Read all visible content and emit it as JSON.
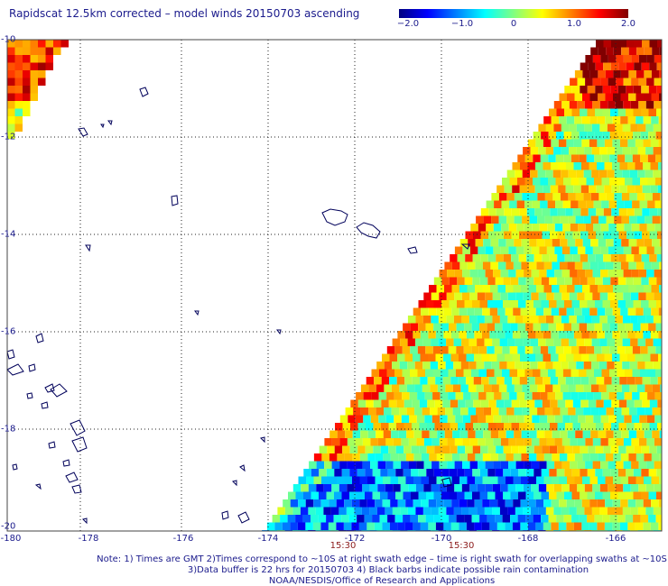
{
  "title": "Rapidscat 12.5km corrected – model winds 20150703 ascending",
  "colorbar": {
    "ticks": [
      "−2.0",
      "−1.0",
      "0",
      "1.0",
      "2.0"
    ],
    "colors": [
      "#000080",
      "#0000ff",
      "#0080ff",
      "#00ffff",
      "#80ff80",
      "#ffff00",
      "#ff8000",
      "#ff0000",
      "#800000"
    ]
  },
  "lat_labels": [
    "-10",
    "-12",
    "-14",
    "-16",
    "-18",
    "-20"
  ],
  "lon_labels": [
    "-180",
    "-178",
    "-176",
    "-174",
    "-172",
    "-170",
    "-168",
    "-166"
  ],
  "time_labels": [
    "15:30",
    "15:30"
  ],
  "notes": [
    "Note: 1) Times are GMT 2)Times correspond to ~10S at right swath edge – time is right swath for overlapping swaths at ~10S",
    "3)Data buffer is 22 hrs for 20150703 4) Black barbs indicate possible rain contamination",
    "NOAA/NESDIS/Office of Research and Applications"
  ]
}
